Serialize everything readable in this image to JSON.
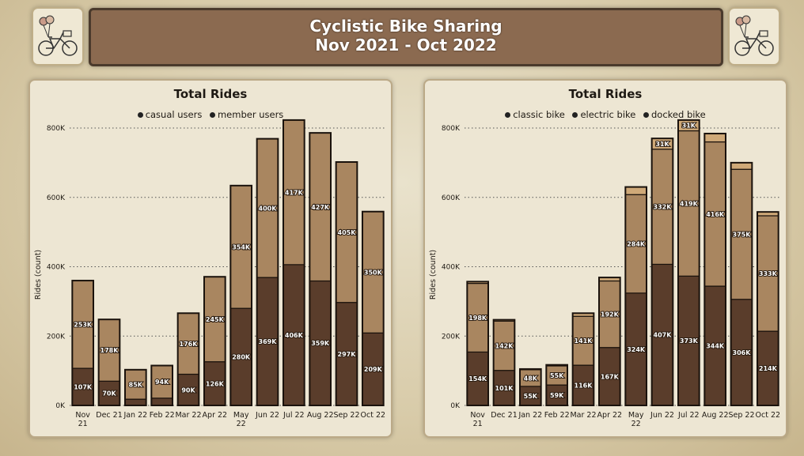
{
  "header": {
    "title_line1": "Cyclistic Bike Sharing",
    "title_line2": "Nov 2021 - Oct 2022"
  },
  "icons": {
    "logo": "bicycle-with-balloons-icon"
  },
  "colors": {
    "dark": "#5a3d2b",
    "light": "#a98660",
    "lighter": "#cfa978",
    "outline": "#1a120c"
  },
  "chart_data": [
    {
      "type": "bar",
      "stacked": true,
      "title": "Total Rides",
      "ylabel": "Rides (count)",
      "xlabel": "",
      "ylim": [
        0,
        800000
      ],
      "yticks": [
        0,
        200000,
        400000,
        600000,
        800000
      ],
      "ytick_labels": [
        "0K",
        "200K",
        "400K",
        "600K",
        "800K"
      ],
      "grid": true,
      "legend_position": "top-center",
      "categories": [
        "Nov 21",
        "Dec 21",
        "Jan 22",
        "Feb 22",
        "Mar 22",
        "Apr 22",
        "May 22",
        "Jun 22",
        "Jul 22",
        "Aug 22",
        "Sep 22",
        "Oct 22"
      ],
      "series": [
        {
          "name": "casual users",
          "color": "#5a3d2b",
          "values": [
            107000,
            70000,
            18000,
            21000,
            90000,
            126000,
            280000,
            369000,
            406000,
            359000,
            297000,
            209000
          ],
          "labels": [
            "107K",
            "70K",
            "",
            "",
            "90K",
            "126K",
            "280K",
            "369K",
            "406K",
            "359K",
            "297K",
            "209K"
          ]
        },
        {
          "name": "member users",
          "color": "#a98660",
          "values": [
            253000,
            178000,
            85000,
            94000,
            176000,
            245000,
            354000,
            400000,
            417000,
            427000,
            405000,
            350000
          ],
          "labels": [
            "253K",
            "178K",
            "85K",
            "94K",
            "176K",
            "245K",
            "354K",
            "400K",
            "417K",
            "427K",
            "405K",
            "350K"
          ]
        }
      ]
    },
    {
      "type": "bar",
      "stacked": true,
      "title": "Total Rides",
      "ylabel": "Rides (count)",
      "xlabel": "",
      "ylim": [
        0,
        800000
      ],
      "yticks": [
        0,
        200000,
        400000,
        600000,
        800000
      ],
      "ytick_labels": [
        "0K",
        "200K",
        "400K",
        "600K",
        "800K"
      ],
      "grid": true,
      "legend_position": "top-center",
      "categories": [
        "Nov 21",
        "Dec 21",
        "Jan 22",
        "Feb 22",
        "Mar 22",
        "Apr 22",
        "May 22",
        "Jun 22",
        "Jul 22",
        "Aug 22",
        "Sep 22",
        "Oct 22"
      ],
      "series": [
        {
          "name": "classic bike",
          "color": "#5a3d2b",
          "values": [
            154000,
            101000,
            55000,
            59000,
            116000,
            167000,
            324000,
            407000,
            373000,
            344000,
            306000,
            214000
          ],
          "labels": [
            "154K",
            "101K",
            "55K",
            "59K",
            "116K",
            "167K",
            "324K",
            "407K",
            "373K",
            "344K",
            "306K",
            "214K"
          ]
        },
        {
          "name": "electric bike",
          "color": "#a98660",
          "values": [
            198000,
            142000,
            48000,
            55000,
            141000,
            192000,
            284000,
            332000,
            419000,
            416000,
            375000,
            333000
          ],
          "labels": [
            "198K",
            "142K",
            "48K",
            "55K",
            "141K",
            "192K",
            "284K",
            "332K",
            "419K",
            "416K",
            "375K",
            "333K"
          ]
        },
        {
          "name": "docked bike",
          "color": "#cfa978",
          "values": [
            5000,
            4000,
            2000,
            3000,
            9000,
            10000,
            22000,
            31000,
            31000,
            24000,
            19000,
            11000
          ],
          "labels": [
            "",
            "",
            "",
            "",
            "",
            "",
            "",
            "31K",
            "31K",
            "",
            "",
            ""
          ]
        }
      ]
    }
  ]
}
